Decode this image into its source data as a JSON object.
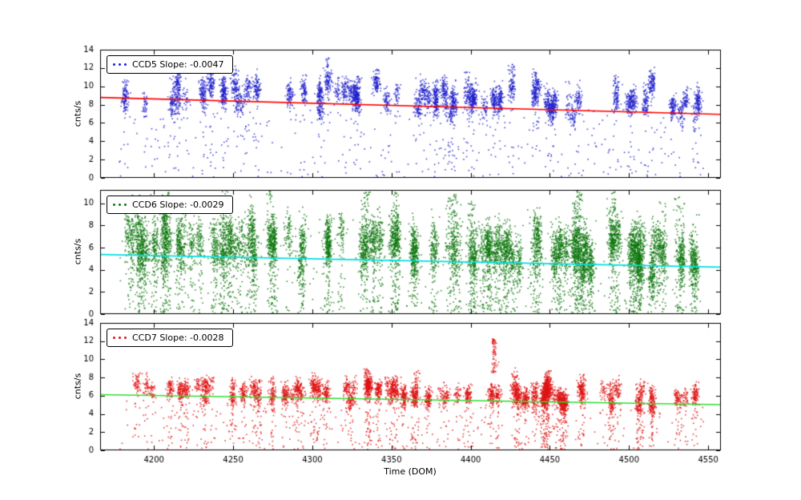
{
  "figure": {
    "background": "#ffffff",
    "xlabel": "Time (DOM)",
    "xlim": [
      4166,
      4558
    ],
    "xticks": [
      4200,
      4250,
      4300,
      4350,
      4400,
      4450,
      4500,
      4550
    ],
    "axis_color": "#000000",
    "font_color": "#000000"
  },
  "chart_data": [
    {
      "type": "scatter",
      "series_name": "CCD5",
      "legend_label": "CCD5 Slope: -0.0047",
      "ylabel": "cnts/s",
      "ylim": [
        0,
        14
      ],
      "yticks": [
        0,
        2,
        4,
        6,
        8,
        10,
        12,
        14
      ],
      "marker_color": "#2020cc",
      "trend_line": {
        "color": "#ff0000",
        "slope": -0.0047,
        "x_ref": 4370,
        "y_ref": 7.82
      },
      "x_range": [
        4178,
        4547
      ],
      "sim": {
        "seed": 11,
        "clusters": 70,
        "pts_min": 25,
        "pts_max": 120,
        "xjit": 1.1,
        "mean_offset": 0.7,
        "mean_sd": 0.85,
        "y_sd": 0.7,
        "tail_frac": 0.045,
        "tail_min": 0.1,
        "tall_frac": 0.18,
        "tall_up": 2.8,
        "bg_points": 320,
        "bg_ymax": 7.5
      }
    },
    {
      "type": "scatter",
      "series_name": "CCD6",
      "legend_label": "CCD6 Slope: -0.0029",
      "ylabel": "cnts/s",
      "ylim": [
        0,
        11.2
      ],
      "yticks": [
        0,
        2,
        4,
        6,
        8,
        10
      ],
      "marker_color": "#0c770c",
      "trend_line": {
        "color": "#00e0e0",
        "slope": -0.0029,
        "x_ref": 4370,
        "y_ref": 4.78
      },
      "x_range": [
        4178,
        4547
      ],
      "sim": {
        "seed": 22,
        "clusters": 95,
        "pts_min": 50,
        "pts_max": 190,
        "xjit": 1.2,
        "mean_offset": 1.1,
        "mean_sd": 0.8,
        "y_sd": 1.05,
        "tail_frac": 0.2,
        "tail_min": 0.05,
        "tall_frac": 0.22,
        "tall_up": 5.0,
        "bg_points": 260,
        "bg_ymax": 9.0
      }
    },
    {
      "type": "scatter",
      "series_name": "CCD7",
      "legend_label": "CCD7 Slope: -0.0028",
      "ylabel": "cnts/s",
      "ylim": [
        0,
        14
      ],
      "yticks": [
        0,
        2,
        4,
        6,
        8,
        10,
        12,
        14
      ],
      "marker_color": "#e01414",
      "trend_line": {
        "color": "#30dd30",
        "slope": -0.0028,
        "x_ref": 4370,
        "y_ref": 5.55
      },
      "x_range": [
        4178,
        4547
      ],
      "sim": {
        "seed": 33,
        "clusters": 78,
        "pts_min": 30,
        "pts_max": 140,
        "xjit": 1.1,
        "mean_offset": 0.7,
        "mean_sd": 0.55,
        "y_sd": 0.55,
        "tail_frac": 0.14,
        "tail_min": 0.05,
        "tall_frac": 0.08,
        "tall_up": 2.5,
        "bg_points": 300,
        "bg_ymax": 5.5,
        "spike": {
          "x": 4415,
          "y_min": 8.5,
          "y_max": 12.3,
          "n": 70
        }
      }
    }
  ]
}
